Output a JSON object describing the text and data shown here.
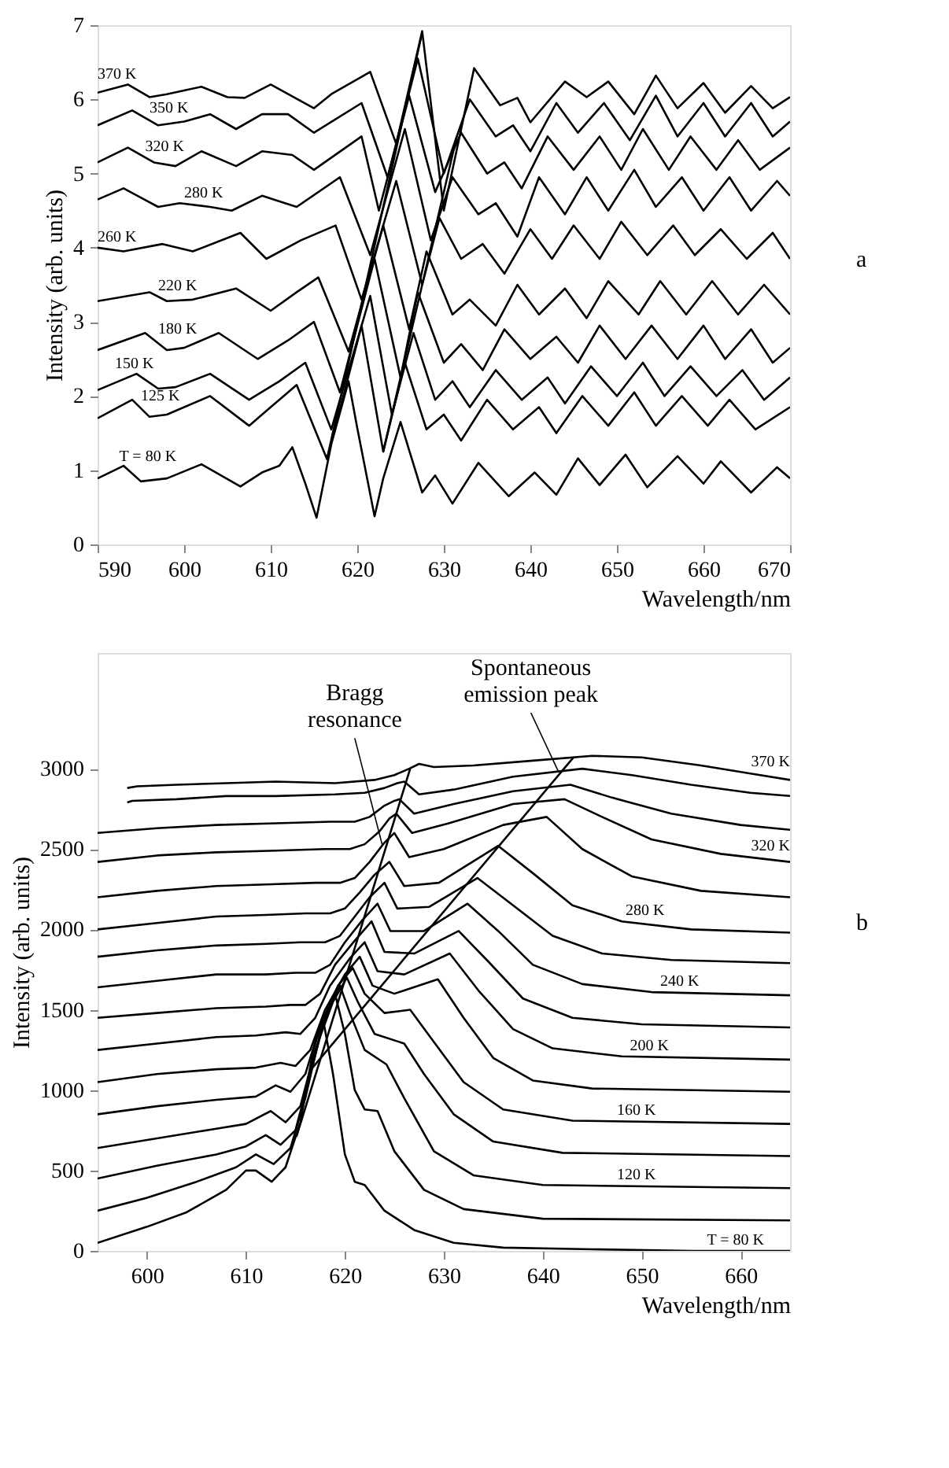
{
  "chart_data": [
    {
      "type": "line",
      "xlabel": "Wavelength/nm",
      "ylabel": "Intensity (arb. units)",
      "xlim": [
        590,
        670
      ],
      "ylim": [
        0,
        7
      ],
      "xticks": [
        590,
        600,
        610,
        620,
        630,
        640,
        650,
        660,
        670
      ],
      "yticks": [
        0,
        1,
        2,
        3,
        4,
        5,
        6,
        7
      ],
      "line_style": "solid",
      "annotations": [
        "a"
      ],
      "series": [
        {
          "name": "T = 80 K",
          "color": "#000000",
          "x": [
            590,
            593,
            595,
            598,
            602,
            606.5,
            609,
            611,
            612.5,
            614,
            615.3,
            617,
            619,
            620,
            622,
            623,
            625,
            626,
            627.5,
            629,
            631,
            634,
            637.5,
            640.5,
            643,
            645.5,
            648,
            651,
            653.5,
            657,
            660,
            662,
            665.5,
            668.5,
            670
          ],
          "values": [
            0.89,
            1.06,
            0.85,
            0.89,
            1.08,
            0.78,
            0.97,
            1.06,
            1.31,
            0.82,
            0.36,
            1.35,
            2.2,
            1.57,
            0.38,
            0.89,
            1.65,
            1.27,
            0.7,
            0.93,
            0.55,
            1.1,
            0.65,
            0.97,
            0.67,
            1.16,
            0.8,
            1.21,
            0.77,
            1.19,
            0.82,
            1.12,
            0.7,
            1.04,
            0.89
          ]
        },
        {
          "name": "125 K",
          "color": "#000000",
          "x": [
            590,
            594,
            596,
            598,
            603,
            607.5,
            610,
            613,
            616.5,
            620.5,
            623,
            625.5,
            628,
            630,
            632,
            635,
            638,
            641,
            643,
            646,
            649,
            652,
            654.5,
            657.5,
            660.5,
            663,
            666,
            670
          ],
          "values": [
            1.7,
            1.95,
            1.72,
            1.75,
            2.0,
            1.6,
            1.85,
            2.15,
            1.15,
            2.95,
            1.25,
            2.45,
            1.55,
            1.75,
            1.4,
            1.95,
            1.55,
            1.85,
            1.5,
            2.0,
            1.6,
            2.05,
            1.6,
            2.0,
            1.6,
            1.95,
            1.55,
            1.85
          ]
        },
        {
          "name": "150 K",
          "color": "#000000",
          "x": [
            590,
            594.5,
            597,
            599,
            603,
            607.5,
            611,
            614,
            617,
            621.5,
            624,
            626.5,
            629,
            631,
            633,
            636,
            639,
            642,
            644,
            647,
            650,
            653,
            655.5,
            658.5,
            661.5,
            664.5,
            667,
            670
          ],
          "values": [
            2.08,
            2.3,
            2.1,
            2.12,
            2.3,
            1.95,
            2.2,
            2.45,
            1.55,
            3.35,
            1.75,
            2.85,
            1.95,
            2.2,
            1.85,
            2.35,
            1.95,
            2.25,
            1.9,
            2.4,
            2.0,
            2.45,
            2.0,
            2.4,
            2.0,
            2.35,
            1.95,
            2.25
          ]
        },
        {
          "name": "180 K",
          "color": "#000000",
          "x": [
            590,
            595.5,
            598,
            600,
            604,
            608.5,
            612,
            615,
            618,
            622,
            625,
            627,
            630,
            632,
            634.5,
            637,
            640,
            643,
            645.5,
            648,
            651,
            654,
            657,
            660,
            662.5,
            665.5,
            668,
            670
          ],
          "values": [
            2.62,
            2.85,
            2.62,
            2.65,
            2.85,
            2.5,
            2.75,
            3.0,
            2.05,
            3.85,
            2.25,
            3.4,
            2.45,
            2.7,
            2.35,
            2.9,
            2.5,
            2.8,
            2.45,
            2.95,
            2.5,
            2.95,
            2.5,
            2.95,
            2.5,
            2.9,
            2.45,
            2.65
          ]
        },
        {
          "name": "220 K",
          "color": "#000000",
          "x": [
            590,
            596,
            598,
            601,
            606,
            610,
            613,
            615.5,
            619,
            623,
            626,
            628,
            631,
            633,
            636,
            638.5,
            641,
            644,
            646.5,
            649,
            652.5,
            655,
            658,
            661,
            664,
            667,
            670
          ],
          "values": [
            3.28,
            3.4,
            3.28,
            3.3,
            3.45,
            3.15,
            3.4,
            3.6,
            2.6,
            4.3,
            2.9,
            3.95,
            3.1,
            3.3,
            2.95,
            3.5,
            3.1,
            3.45,
            3.05,
            3.55,
            3.1,
            3.55,
            3.1,
            3.55,
            3.1,
            3.5,
            3.1
          ]
        },
        {
          "name": "260 K",
          "color": "#000000",
          "x": [
            590,
            593,
            597.5,
            601,
            606.5,
            609.5,
            613.5,
            617.5,
            620.5,
            624.5,
            627.5,
            629.5,
            632,
            634.5,
            637,
            640,
            642.5,
            645,
            648,
            650.5,
            653.5,
            656.5,
            659,
            662,
            665,
            668,
            670
          ],
          "values": [
            4.0,
            3.95,
            4.05,
            3.95,
            4.2,
            3.85,
            4.1,
            4.3,
            3.3,
            4.9,
            3.5,
            4.4,
            3.85,
            4.05,
            3.65,
            4.25,
            3.85,
            4.3,
            3.85,
            4.35,
            3.9,
            4.3,
            3.9,
            4.25,
            3.85,
            4.2,
            3.85
          ]
        },
        {
          "name": "280 K",
          "color": "#000000",
          "x": [
            590,
            593,
            597,
            599.5,
            603,
            605.5,
            609,
            613,
            618,
            621.5,
            625.5,
            628.5,
            631,
            634,
            636,
            638.5,
            641,
            644,
            646.5,
            649,
            652,
            654.5,
            657.5,
            660,
            663,
            665.5,
            668.5,
            670
          ],
          "values": [
            4.65,
            4.8,
            4.55,
            4.6,
            4.55,
            4.5,
            4.7,
            4.55,
            4.95,
            3.9,
            5.6,
            4.1,
            4.95,
            4.45,
            4.6,
            4.15,
            4.95,
            4.45,
            4.95,
            4.5,
            5.05,
            4.55,
            4.95,
            4.5,
            4.95,
            4.5,
            4.9,
            4.7
          ]
        },
        {
          "name": "320 K",
          "color": "#000000",
          "x": [
            590,
            593.5,
            596.5,
            599,
            602,
            606,
            609,
            612.5,
            615,
            620.5,
            622.5,
            626,
            629,
            632,
            635,
            637,
            639,
            642,
            645,
            648,
            650.5,
            653,
            656,
            658.5,
            661.5,
            664,
            666.5,
            670
          ],
          "values": [
            5.15,
            5.35,
            5.15,
            5.1,
            5.3,
            5.1,
            5.3,
            5.25,
            5.05,
            5.5,
            4.5,
            6.05,
            4.75,
            5.55,
            5.0,
            5.15,
            4.8,
            5.5,
            5.05,
            5.5,
            5.05,
            5.6,
            5.05,
            5.5,
            5.05,
            5.45,
            5.05,
            5.35
          ]
        },
        {
          "name": "350 K",
          "color": "#000000",
          "x": [
            590,
            594,
            597,
            600,
            603,
            606,
            609,
            612,
            615,
            620.5,
            623.5,
            627,
            630,
            633,
            636,
            638,
            640,
            643,
            645.5,
            648.5,
            651.5,
            654.5,
            657,
            660,
            662.5,
            665.5,
            668,
            670
          ],
          "values": [
            5.65,
            5.85,
            5.65,
            5.7,
            5.8,
            5.6,
            5.8,
            5.8,
            5.55,
            5.95,
            4.95,
            6.55,
            5.0,
            6.0,
            5.5,
            5.65,
            5.3,
            5.95,
            5.55,
            5.95,
            5.45,
            6.05,
            5.5,
            5.95,
            5.5,
            5.95,
            5.5,
            5.7
          ]
        },
        {
          "name": "370 K",
          "color": "#000000",
          "x": [
            590,
            593.5,
            596,
            598,
            602,
            605,
            607,
            610,
            615,
            617,
            621.5,
            624.5,
            627.5,
            630,
            633.5,
            636.5,
            638.5,
            640,
            644,
            646.5,
            649,
            652,
            654.5,
            657,
            660,
            662.5,
            665.5,
            668,
            670
          ],
          "values": [
            6.09,
            6.2,
            6.03,
            6.07,
            6.17,
            6.03,
            6.02,
            6.2,
            5.88,
            6.07,
            6.37,
            5.4,
            6.92,
            4.5,
            6.42,
            5.92,
            6.02,
            5.69,
            6.24,
            6.03,
            6.24,
            5.8,
            6.32,
            5.88,
            6.22,
            5.82,
            6.18,
            5.88,
            6.03
          ]
        },
        {
          "color": "#000000",
          "x": [
            616.5,
            627.5
          ],
          "values": [
            1.15,
            6.9
          ]
        },
        {
          "color": "#000000",
          "x": [
            623,
            631.5
          ],
          "values": [
            1.25,
            5.5
          ]
        }
      ]
    },
    {
      "type": "line",
      "xlabel": "Wavelength/nm",
      "ylabel": "Intensity (arb. units)",
      "xlim": [
        595,
        665
      ],
      "ylim": [
        0,
        3720
      ],
      "xticks": [
        600,
        610,
        620,
        630,
        640,
        650,
        660
      ],
      "yticks": [
        0,
        500,
        1000,
        1500,
        2000,
        2500,
        3000
      ],
      "line_style": "solid",
      "annotations": [
        "b",
        {
          "text": "Bragg resonance",
          "x": 623.8,
          "y": 2520
        },
        {
          "text": "Spontaneous emission peak",
          "x": 641.6,
          "y": 2980
        }
      ],
      "series": [
        {
          "name": "T = 80 K",
          "color": "#000000",
          "x": [
            595,
            600,
            604,
            608,
            610,
            611,
            612.6,
            614,
            615.5,
            616.8,
            617.8,
            618.8,
            620,
            621,
            622,
            624,
            627,
            631,
            636,
            645,
            655,
            665
          ],
          "values": [
            50,
            150,
            240,
            380,
            500,
            500,
            430,
            520,
            800,
            1250,
            1440,
            1100,
            600,
            430,
            410,
            250,
            130,
            50,
            20,
            10,
            0,
            0
          ]
        },
        {
          "color": "#000000",
          "x": [
            595,
            600,
            605,
            609,
            611,
            612.8,
            614.5,
            616,
            617.5,
            619,
            620,
            621,
            622,
            623.3,
            625,
            628,
            632,
            640,
            665
          ],
          "values": [
            250,
            330,
            430,
            520,
            600,
            540,
            640,
            950,
            1350,
            1600,
            1350,
            1000,
            880,
            870,
            620,
            380,
            260,
            200,
            190
          ]
        },
        {
          "name": "120 K",
          "color": "#000000",
          "x": [
            595,
            601,
            607,
            610,
            612,
            613.5,
            615,
            616.5,
            618,
            619.5,
            620.5,
            622,
            624.2,
            626,
            629,
            633,
            640,
            665
          ],
          "values": [
            450,
            530,
            600,
            650,
            720,
            660,
            750,
            1100,
            1450,
            1650,
            1480,
            1250,
            1160,
            950,
            620,
            470,
            410,
            390
          ]
        },
        {
          "color": "#000000",
          "x": [
            595,
            601,
            607,
            610,
            612.5,
            614,
            615.5,
            617,
            618.8,
            620.2,
            621.3,
            623,
            626,
            628,
            631,
            635,
            642,
            665
          ],
          "values": [
            640,
            700,
            760,
            790,
            870,
            800,
            900,
            1250,
            1550,
            1700,
            1550,
            1350,
            1290,
            1100,
            850,
            680,
            610,
            590
          ]
        },
        {
          "name": "160 K",
          "color": "#000000",
          "x": [
            595,
            601,
            607,
            611,
            613,
            614.5,
            616,
            617.5,
            619.3,
            620.8,
            622,
            624,
            626.6,
            629,
            632,
            636,
            643,
            665
          ],
          "values": [
            850,
            900,
            940,
            960,
            1030,
            990,
            1100,
            1400,
            1650,
            1760,
            1600,
            1480,
            1500,
            1300,
            1050,
            880,
            810,
            790
          ]
        },
        {
          "color": "#000000",
          "x": [
            595,
            601,
            607,
            611,
            613.5,
            615,
            616.5,
            618,
            620,
            621.5,
            622.8,
            625,
            629.4,
            632,
            635,
            639,
            645,
            665
          ],
          "values": [
            1050,
            1100,
            1130,
            1140,
            1170,
            1150,
            1250,
            1500,
            1720,
            1830,
            1650,
            1600,
            1690,
            1450,
            1200,
            1060,
            1010,
            990
          ]
        },
        {
          "name": "200 K",
          "color": "#000000",
          "x": [
            595,
            601,
            607,
            611,
            614,
            615.5,
            617,
            618.5,
            620.5,
            622,
            623.3,
            626,
            630.6,
            633.5,
            637,
            641,
            648,
            665
          ],
          "values": [
            1250,
            1290,
            1330,
            1340,
            1360,
            1350,
            1450,
            1650,
            1820,
            1920,
            1740,
            1720,
            1850,
            1620,
            1380,
            1260,
            1210,
            1190
          ]
        },
        {
          "color": "#000000",
          "x": [
            595,
            601,
            607,
            612,
            614.5,
            616,
            617.5,
            619,
            621,
            622.7,
            624,
            627,
            631.5,
            634.5,
            638,
            643,
            650,
            665
          ],
          "values": [
            1450,
            1480,
            1510,
            1520,
            1530,
            1530,
            1600,
            1780,
            1930,
            2050,
            1860,
            1850,
            1990,
            1800,
            1570,
            1450,
            1410,
            1390
          ]
        },
        {
          "name": "240 K",
          "color": "#000000",
          "x": [
            595,
            601,
            607,
            612,
            615,
            617,
            618.5,
            620,
            621.8,
            623.3,
            624.6,
            628,
            632.4,
            635.5,
            639,
            644,
            651,
            665
          ],
          "values": [
            1640,
            1680,
            1720,
            1720,
            1730,
            1730,
            1780,
            1920,
            2060,
            2160,
            1990,
            1990,
            2160,
            1990,
            1780,
            1660,
            1610,
            1590
          ]
        },
        {
          "color": "#000000",
          "x": [
            595,
            601,
            607,
            612,
            615.5,
            618,
            619.5,
            621,
            622.5,
            624,
            625.3,
            628.5,
            633.4,
            637,
            641,
            646,
            653,
            665
          ],
          "values": [
            1830,
            1870,
            1900,
            1910,
            1920,
            1920,
            1960,
            2080,
            2200,
            2290,
            2130,
            2140,
            2320,
            2150,
            1960,
            1850,
            1810,
            1790
          ]
        },
        {
          "name": "280 K",
          "color": "#000000",
          "x": [
            595,
            601,
            607,
            612,
            616,
            618.5,
            620,
            621.5,
            623,
            624.5,
            626,
            629.5,
            635.5,
            639,
            643,
            648,
            655,
            665
          ],
          "values": [
            2000,
            2040,
            2080,
            2090,
            2100,
            2100,
            2130,
            2230,
            2340,
            2420,
            2270,
            2290,
            2520,
            2350,
            2150,
            2050,
            2000,
            1980
          ]
        },
        {
          "color": "#000000",
          "x": [
            595,
            601,
            607,
            612,
            617,
            619.5,
            621,
            622.5,
            624,
            625,
            626.5,
            630,
            636,
            640.4,
            644,
            649,
            656,
            665
          ],
          "values": [
            2200,
            2240,
            2270,
            2280,
            2290,
            2290,
            2320,
            2420,
            2540,
            2600,
            2450,
            2500,
            2650,
            2700,
            2500,
            2330,
            2240,
            2200
          ]
        },
        {
          "name": "320 K",
          "color": "#000000",
          "x": [
            595,
            601,
            607,
            613,
            618,
            620.5,
            622,
            623.5,
            624.5,
            625.2,
            626.8,
            630.5,
            637,
            642.2,
            646,
            651,
            658,
            665
          ],
          "values": [
            2420,
            2460,
            2480,
            2490,
            2500,
            2500,
            2530,
            2610,
            2690,
            2720,
            2600,
            2660,
            2780,
            2810,
            2700,
            2560,
            2470,
            2420
          ]
        },
        {
          "color": "#000000",
          "x": [
            595,
            601,
            607,
            613,
            618.5,
            621,
            622.5,
            624,
            625,
            625.5,
            627,
            631,
            637,
            642.8,
            647,
            653,
            660,
            665
          ],
          "values": [
            2600,
            2630,
            2650,
            2660,
            2670,
            2670,
            2700,
            2770,
            2800,
            2810,
            2720,
            2780,
            2860,
            2900,
            2820,
            2720,
            2650,
            2620
          ]
        },
        {
          "color": "#000000",
          "x": [
            598,
            598.5,
            603,
            608,
            613,
            619,
            622,
            624,
            625.3,
            626,
            627.5,
            631,
            637,
            644,
            649,
            655,
            661,
            665
          ],
          "values": [
            2790,
            2800,
            2810,
            2830,
            2830,
            2840,
            2850,
            2880,
            2910,
            2920,
            2840,
            2870,
            2950,
            3000,
            2960,
            2900,
            2850,
            2830
          ]
        },
        {
          "name": "370 K",
          "color": "#000000",
          "x": [
            598,
            599,
            603,
            608,
            613,
            619,
            623,
            625,
            626.5,
            627.5,
            629,
            633,
            639,
            645,
            650,
            656,
            661,
            665
          ],
          "values": [
            2880,
            2890,
            2900,
            2910,
            2920,
            2910,
            2930,
            2960,
            3000,
            3030,
            3010,
            3020,
            3050,
            3080,
            3070,
            3020,
            2970,
            2930
          ]
        },
        {
          "color": "#000000",
          "x": [
            615.1,
            626.6
          ],
          "values": [
            710,
            3000
          ]
        },
        {
          "color": "#000000",
          "x": [
            616.6,
            643.1
          ],
          "values": [
            1130,
            3070
          ]
        }
      ]
    }
  ]
}
